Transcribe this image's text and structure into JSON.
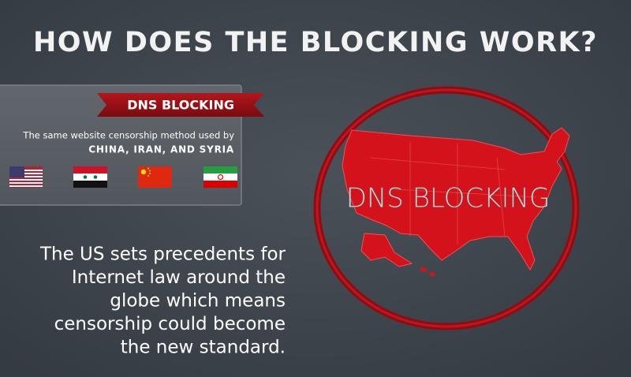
{
  "header": {
    "title": "HOW DOES THE BLOCKING WORK?"
  },
  "panel": {
    "heading": "DNS BLOCKING",
    "line1": "The same website censorship method used by",
    "line2": "CHINA, IRAN, AND SYRIA"
  },
  "map": {
    "label": "DNS BLOCKING"
  },
  "body": {
    "lines": [
      "The US sets precedents for",
      "Internet law around the",
      "globe  which means",
      "censorship could become",
      "the new standard."
    ]
  }
}
